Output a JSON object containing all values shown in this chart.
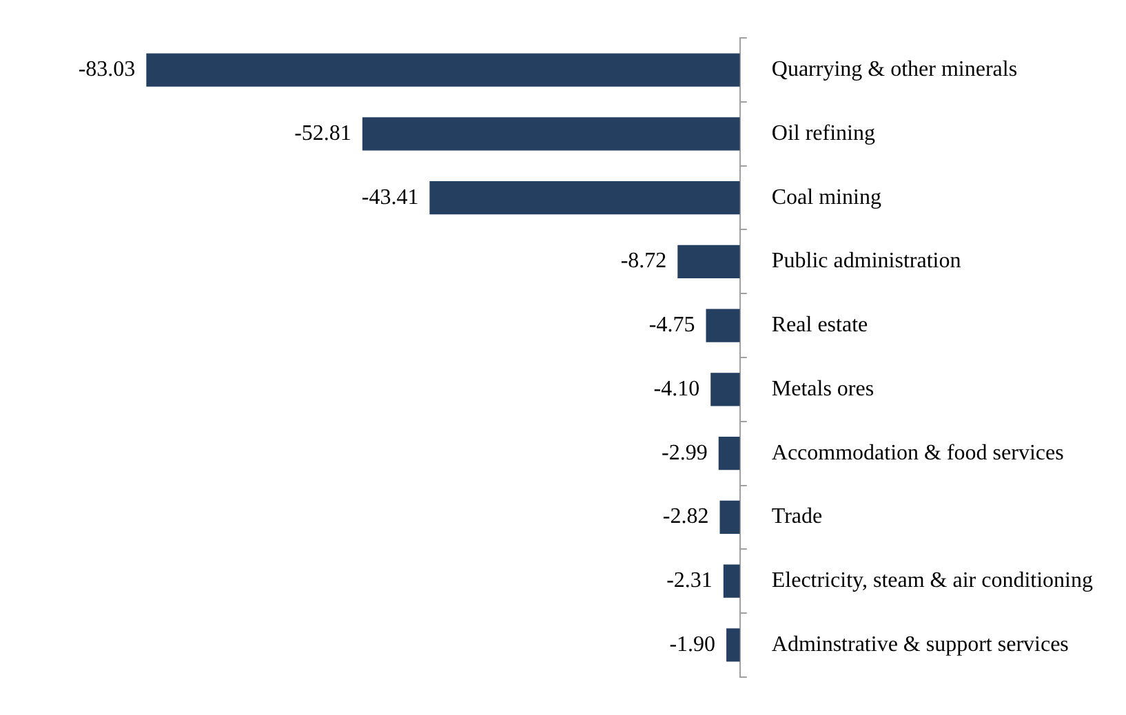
{
  "chart_data": {
    "type": "bar",
    "orientation": "horizontal",
    "categories": [
      "Quarrying & other minerals",
      "Oil refining",
      "Coal mining",
      "Public administration",
      "Real estate",
      "Metals ores",
      "Accommodation & food services",
      "Trade",
      "Electricity, steam & air conditioning",
      "Adminstrative & support services"
    ],
    "values": [
      -83.03,
      -52.81,
      -43.41,
      -8.72,
      -4.75,
      -4.1,
      -2.99,
      -2.82,
      -2.31,
      -1.9
    ],
    "value_labels": [
      "-83.03",
      "-52.81",
      "-43.41",
      "-8.72",
      "-4.75",
      "-4.10",
      "-2.99",
      "-2.82",
      "-2.31",
      "-1.90"
    ],
    "color": "#243f60",
    "grid": false,
    "legend": false
  }
}
